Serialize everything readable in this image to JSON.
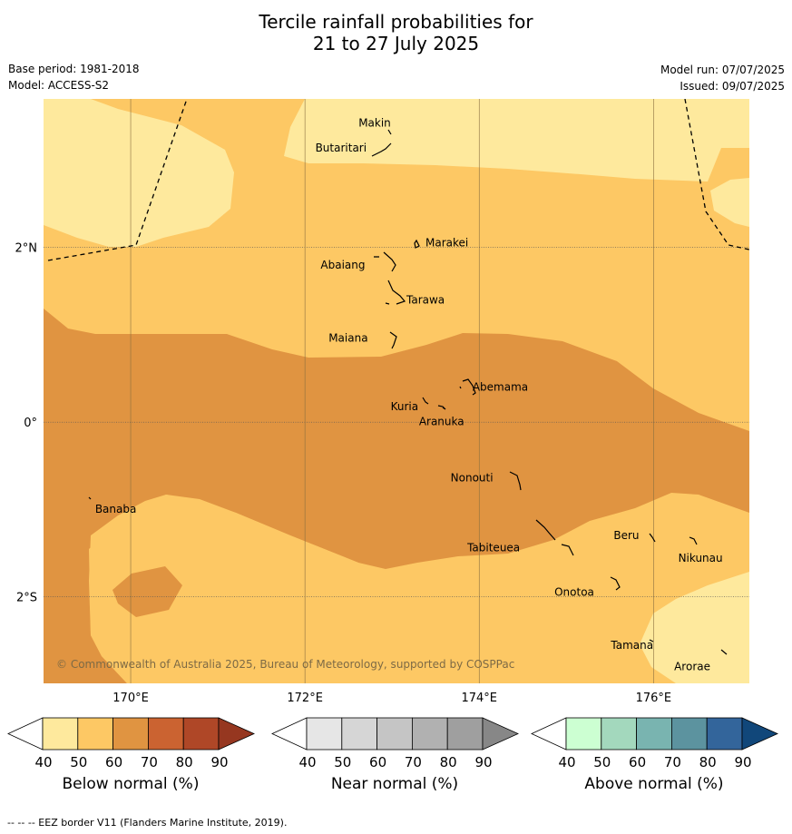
{
  "title_line1": "Tercile rainfall probabilities for",
  "title_line2": "21 to 27 July 2025",
  "base_period": "Base period: 1981-2018",
  "model": "Model: ACCESS-S2",
  "model_run": "Model run: 07/07/2025",
  "issued": "Issued: 09/07/2025",
  "copyright": "© Commonwealth of Australia 2025, Bureau of Meteorology, supported by COSPPac",
  "footer": "--  --  -- EEZ border V11 (Flanders Marine Institute, 2019).",
  "axes": {
    "lon_ticks": [
      {
        "lon": 170,
        "label": "170°E"
      },
      {
        "lon": 172,
        "label": "172°E"
      },
      {
        "lon": 174,
        "label": "174°E"
      },
      {
        "lon": 176,
        "label": "176°E"
      }
    ],
    "lat_ticks": [
      {
        "lat": 2,
        "label": "2°N"
      },
      {
        "lat": 0,
        "label": "0°"
      },
      {
        "lat": -2,
        "label": "2°S"
      }
    ],
    "lon_range": [
      169,
      177.1
    ],
    "lat_range": [
      -2.99,
      3.7
    ]
  },
  "places": [
    {
      "name": "Makin",
      "lon": 173.0,
      "lat": 3.35
    },
    {
      "name": "Butaritari",
      "lon": 172.9,
      "lat": 3.1
    },
    {
      "name": "Marakei",
      "lon": 173.3,
      "lat": 2.0
    },
    {
      "name": "Abaiang",
      "lon": 172.95,
      "lat": 1.8
    },
    {
      "name": "Tarawa",
      "lon": 173.05,
      "lat": 1.4
    },
    {
      "name": "Maiana",
      "lon": 173.0,
      "lat": 0.95
    },
    {
      "name": "Abemama",
      "lon": 173.85,
      "lat": 0.4
    },
    {
      "name": "Kuria",
      "lon": 173.4,
      "lat": 0.2
    },
    {
      "name": "Aranuka",
      "lon": 173.6,
      "lat": 0.15
    },
    {
      "name": "Nonouti",
      "lon": 174.4,
      "lat": -0.65
    },
    {
      "name": "Banaba",
      "lon": 169.55,
      "lat": -0.88
    },
    {
      "name": "Tabiteuea",
      "lon": 174.8,
      "lat": -1.3
    },
    {
      "name": "Beru",
      "lon": 176.0,
      "lat": -1.33
    },
    {
      "name": "Nikunau",
      "lon": 176.45,
      "lat": -1.38
    },
    {
      "name": "Onotoa",
      "lon": 175.55,
      "lat": -1.82
    },
    {
      "name": "Tamana",
      "lon": 175.98,
      "lat": -2.5
    },
    {
      "name": "Arorae",
      "lon": 176.82,
      "lat": -2.65
    }
  ],
  "colorbars": [
    {
      "label": "Below normal (%)",
      "ticks": [
        "40",
        "50",
        "60",
        "70",
        "80",
        "90"
      ],
      "colors": [
        "#ffffff",
        "#fee99d",
        "#fdc864",
        "#e09441",
        "#cb6331",
        "#af4727",
        "#963720"
      ]
    },
    {
      "label": "Near normal (%)",
      "ticks": [
        "40",
        "50",
        "60",
        "70",
        "80",
        "90"
      ],
      "colors": [
        "#ffffff",
        "#e6e6e6",
        "#d6d6d6",
        "#c5c5c5",
        "#b1b1b1",
        "#9f9f9f",
        "#878787"
      ]
    },
    {
      "label": "Above normal (%)",
      "ticks": [
        "40",
        "50",
        "60",
        "70",
        "80",
        "90"
      ],
      "colors": [
        "#ffffff",
        "#ccffd2",
        "#a3d8bd",
        "#79b4b0",
        "#5c939f",
        "#33659b",
        "#11477a"
      ]
    }
  ],
  "colors": {
    "light": "#fee99d",
    "mid": "#fdc864",
    "dark": "#e09441"
  }
}
